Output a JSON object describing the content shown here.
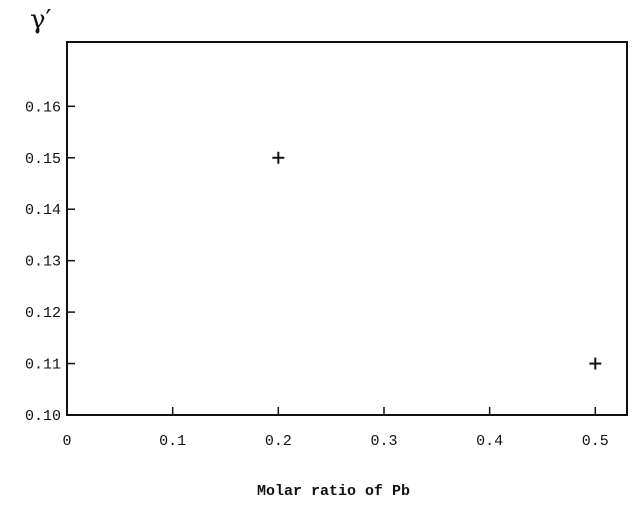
{
  "chart_data": {
    "type": "scatter",
    "title": "",
    "xlabel": "Molar ratio of Pb",
    "ylabel": "γ′",
    "xlim": [
      0,
      0.53
    ],
    "ylim": [
      0.1,
      0.1725
    ],
    "xticks": [
      0,
      0.1,
      0.2,
      0.3,
      0.4,
      0.5
    ],
    "xtick_labels": [
      "0",
      "0.1",
      "0.2",
      "0.3",
      "0.4",
      "0.5"
    ],
    "yticks": [
      0.1,
      0.11,
      0.12,
      0.13,
      0.14,
      0.15,
      0.16
    ],
    "ytick_labels": [
      "0.10",
      "0.11",
      "0.12",
      "0.13",
      "0.14",
      "0.15",
      "0.16"
    ],
    "grid": false,
    "marker": "+",
    "series": [
      {
        "x": [
          0.2,
          0.5
        ],
        "y": [
          0.15,
          0.11
        ]
      }
    ],
    "colors": {
      "ink": "#111111",
      "background": "#ffffff"
    }
  }
}
